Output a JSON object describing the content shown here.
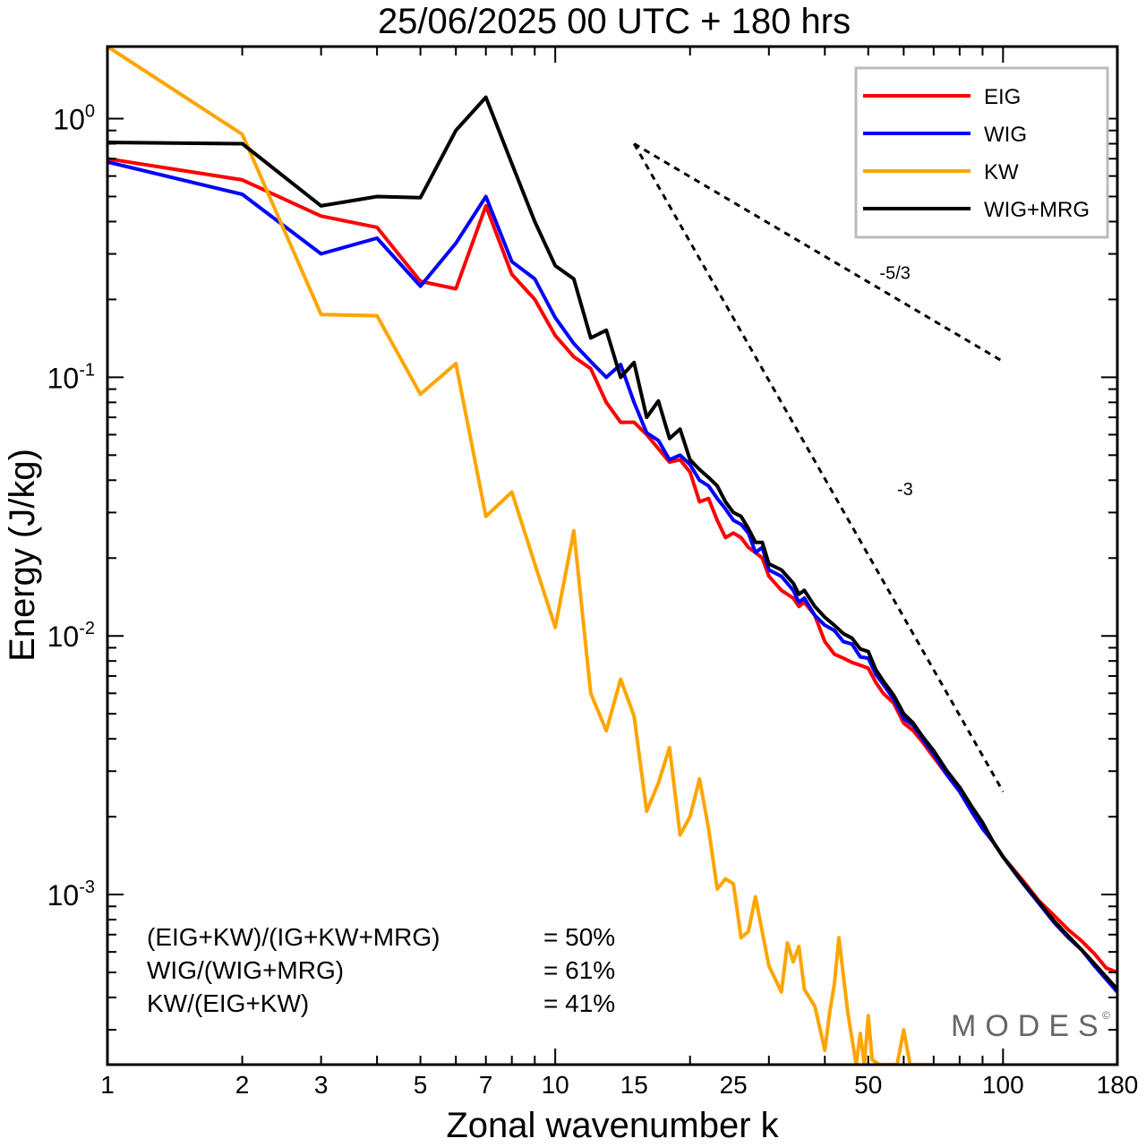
{
  "chart_data": {
    "type": "line",
    "title": "25/06/2025  00 UTC  + 180 hrs",
    "xlabel": "Zonal wavenumber k",
    "ylabel": "Energy (J/kg)",
    "x_scale": "log",
    "y_scale": "log",
    "xlim": [
      1,
      180
    ],
    "ylim": [
      0.00022,
      1.9
    ],
    "x_ticks": [
      1,
      2,
      3,
      5,
      7,
      10,
      15,
      25,
      50,
      100,
      180
    ],
    "y_ticks": [
      {
        "value": 1,
        "base": "10",
        "exp": "0"
      },
      {
        "value": 0.1,
        "base": "10",
        "exp": "-1"
      },
      {
        "value": 0.01,
        "base": "10",
        "exp": "-2"
      },
      {
        "value": 0.001,
        "base": "10",
        "exp": "-3"
      }
    ],
    "grid": false,
    "legend_position": "top-right",
    "series": [
      {
        "name": "EIG",
        "color": "#ff0000",
        "points": [
          [
            1,
            0.7
          ],
          [
            2,
            0.58
          ],
          [
            3,
            0.42
          ],
          [
            4,
            0.38
          ],
          [
            5,
            0.235
          ],
          [
            6,
            0.22
          ],
          [
            7,
            0.46
          ],
          [
            8,
            0.25
          ],
          [
            9,
            0.2
          ],
          [
            10,
            0.145
          ],
          [
            11,
            0.12
          ],
          [
            12,
            0.108
          ],
          [
            13,
            0.08
          ],
          [
            14,
            0.067
          ],
          [
            15,
            0.067
          ],
          [
            16,
            0.06
          ],
          [
            18,
            0.047
          ],
          [
            19,
            0.048
          ],
          [
            20,
            0.043
          ],
          [
            21,
            0.033
          ],
          [
            22,
            0.034
          ],
          [
            23,
            0.028
          ],
          [
            24,
            0.024
          ],
          [
            25,
            0.025
          ],
          [
            26,
            0.024
          ],
          [
            27,
            0.022
          ],
          [
            28,
            0.021
          ],
          [
            29,
            0.02
          ],
          [
            30,
            0.017
          ],
          [
            32,
            0.015
          ],
          [
            34,
            0.014
          ],
          [
            35,
            0.013
          ],
          [
            36,
            0.0135
          ],
          [
            38,
            0.012
          ],
          [
            40,
            0.0095
          ],
          [
            42,
            0.0085
          ],
          [
            44,
            0.0082
          ],
          [
            46,
            0.0079
          ],
          [
            48,
            0.0077
          ],
          [
            50,
            0.0075
          ],
          [
            52,
            0.0066
          ],
          [
            54,
            0.006
          ],
          [
            57,
            0.0055
          ],
          [
            60,
            0.0046
          ],
          [
            63,
            0.0043
          ],
          [
            66,
            0.0039
          ],
          [
            70,
            0.0034
          ],
          [
            75,
            0.0029
          ],
          [
            80,
            0.0025
          ],
          [
            85,
            0.0021
          ],
          [
            90,
            0.0018
          ],
          [
            95,
            0.0016
          ],
          [
            100,
            0.0014
          ],
          [
            110,
            0.00115
          ],
          [
            120,
            0.00095
          ],
          [
            130,
            0.00083
          ],
          [
            140,
            0.00073
          ],
          [
            150,
            0.00066
          ],
          [
            160,
            0.00059
          ],
          [
            170,
            0.00052
          ],
          [
            180,
            0.0005
          ]
        ]
      },
      {
        "name": "WIG",
        "color": "#0000ff",
        "points": [
          [
            1,
            0.68
          ],
          [
            2,
            0.51
          ],
          [
            3,
            0.3
          ],
          [
            4,
            0.345
          ],
          [
            5,
            0.225
          ],
          [
            6,
            0.33
          ],
          [
            7,
            0.5
          ],
          [
            8,
            0.28
          ],
          [
            9,
            0.24
          ],
          [
            10,
            0.17
          ],
          [
            11,
            0.135
          ],
          [
            12,
            0.115
          ],
          [
            13,
            0.1
          ],
          [
            14,
            0.112
          ],
          [
            15,
            0.08
          ],
          [
            16,
            0.061
          ],
          [
            17,
            0.057
          ],
          [
            18,
            0.048
          ],
          [
            19,
            0.05
          ],
          [
            20,
            0.046
          ],
          [
            21,
            0.04
          ],
          [
            22,
            0.038
          ],
          [
            23,
            0.034
          ],
          [
            24,
            0.031
          ],
          [
            25,
            0.028
          ],
          [
            26,
            0.027
          ],
          [
            27,
            0.025
          ],
          [
            28,
            0.021
          ],
          [
            29,
            0.022
          ],
          [
            30,
            0.018
          ],
          [
            32,
            0.017
          ],
          [
            34,
            0.015
          ],
          [
            35,
            0.0135
          ],
          [
            36,
            0.014
          ],
          [
            38,
            0.012
          ],
          [
            40,
            0.011
          ],
          [
            42,
            0.0105
          ],
          [
            44,
            0.0095
          ],
          [
            46,
            0.0093
          ],
          [
            48,
            0.0083
          ],
          [
            50,
            0.0082
          ],
          [
            52,
            0.0071
          ],
          [
            54,
            0.0065
          ],
          [
            57,
            0.0057
          ],
          [
            60,
            0.0048
          ],
          [
            63,
            0.0045
          ],
          [
            66,
            0.004
          ],
          [
            70,
            0.0035
          ],
          [
            75,
            0.0029
          ],
          [
            80,
            0.0025
          ],
          [
            85,
            0.0021
          ],
          [
            90,
            0.0018
          ],
          [
            95,
            0.0016
          ],
          [
            100,
            0.0014
          ],
          [
            110,
            0.00112
          ],
          [
            120,
            0.00093
          ],
          [
            130,
            0.00078
          ],
          [
            140,
            0.00068
          ],
          [
            150,
            0.00061
          ],
          [
            160,
            0.00053
          ],
          [
            170,
            0.00047
          ],
          [
            180,
            0.00042
          ]
        ]
      },
      {
        "name": "KW",
        "color": "#ffa500",
        "points": [
          [
            1,
            1.9
          ],
          [
            2,
            0.87
          ],
          [
            3,
            0.175
          ],
          [
            4,
            0.173
          ],
          [
            5,
            0.086
          ],
          [
            6,
            0.113
          ],
          [
            7,
            0.029
          ],
          [
            8,
            0.036
          ],
          [
            9,
            0.019
          ],
          [
            10,
            0.0108
          ],
          [
            11,
            0.0255
          ],
          [
            12,
            0.006
          ],
          [
            13,
            0.0043
          ],
          [
            14,
            0.0068
          ],
          [
            15,
            0.0049
          ],
          [
            16,
            0.0021
          ],
          [
            17,
            0.0027
          ],
          [
            18,
            0.0037
          ],
          [
            19,
            0.0017
          ],
          [
            20,
            0.002
          ],
          [
            21,
            0.0028
          ],
          [
            22,
            0.0018
          ],
          [
            23,
            0.00105
          ],
          [
            24,
            0.00115
          ],
          [
            25,
            0.0011
          ],
          [
            26,
            0.00068
          ],
          [
            27,
            0.00072
          ],
          [
            28,
            0.00098
          ],
          [
            30,
            0.00053
          ],
          [
            32,
            0.00042
          ],
          [
            33,
            0.00065
          ],
          [
            34,
            0.00055
          ],
          [
            35,
            0.00063
          ],
          [
            36,
            0.00043
          ],
          [
            38,
            0.00037
          ],
          [
            40,
            0.00025
          ],
          [
            41,
            0.00035
          ],
          [
            42,
            0.00045
          ],
          [
            43,
            0.00068
          ],
          [
            45,
            0.00035
          ],
          [
            47,
            0.00022
          ],
          [
            48,
            0.00029
          ],
          [
            49,
            0.00022
          ],
          [
            50,
            0.00034
          ],
          [
            51,
            0.00023
          ],
          [
            53,
            0.00022
          ],
          [
            56,
            0.00022
          ],
          [
            58,
            0.00022
          ],
          [
            60,
            0.0003
          ],
          [
            62,
            0.00022
          ],
          [
            66,
            0.00022
          ],
          [
            70,
            0.00022
          ]
        ]
      },
      {
        "name": "WIG+MRG",
        "color": "#000000",
        "points": [
          [
            1,
            0.81
          ],
          [
            2,
            0.8
          ],
          [
            3,
            0.46
          ],
          [
            4,
            0.5
          ],
          [
            5,
            0.495
          ],
          [
            6,
            0.9
          ],
          [
            7,
            1.21
          ],
          [
            8,
            0.67
          ],
          [
            9,
            0.4
          ],
          [
            10,
            0.27
          ],
          [
            11,
            0.24
          ],
          [
            12,
            0.142
          ],
          [
            13,
            0.152
          ],
          [
            14,
            0.1
          ],
          [
            15,
            0.114
          ],
          [
            16,
            0.07
          ],
          [
            17,
            0.081
          ],
          [
            18,
            0.058
          ],
          [
            19,
            0.063
          ],
          [
            20,
            0.048
          ],
          [
            21,
            0.044
          ],
          [
            22,
            0.041
          ],
          [
            23,
            0.038
          ],
          [
            24,
            0.033
          ],
          [
            25,
            0.03
          ],
          [
            26,
            0.029
          ],
          [
            27,
            0.026
          ],
          [
            28,
            0.023
          ],
          [
            29,
            0.023
          ],
          [
            30,
            0.019
          ],
          [
            32,
            0.018
          ],
          [
            34,
            0.016
          ],
          [
            35,
            0.0145
          ],
          [
            36,
            0.015
          ],
          [
            38,
            0.013
          ],
          [
            40,
            0.0118
          ],
          [
            42,
            0.011
          ],
          [
            44,
            0.0102
          ],
          [
            46,
            0.0098
          ],
          [
            48,
            0.0089
          ],
          [
            50,
            0.0087
          ],
          [
            52,
            0.0074
          ],
          [
            54,
            0.0067
          ],
          [
            57,
            0.0059
          ],
          [
            60,
            0.005
          ],
          [
            63,
            0.0046
          ],
          [
            66,
            0.0041
          ],
          [
            70,
            0.0036
          ],
          [
            75,
            0.003
          ],
          [
            80,
            0.0026
          ],
          [
            85,
            0.0022
          ],
          [
            90,
            0.0019
          ],
          [
            95,
            0.0016
          ],
          [
            100,
            0.0014
          ],
          [
            110,
            0.00113
          ],
          [
            120,
            0.00094
          ],
          [
            130,
            0.00079
          ],
          [
            140,
            0.00069
          ],
          [
            150,
            0.00061
          ],
          [
            160,
            0.00054
          ],
          [
            170,
            0.00048
          ],
          [
            180,
            0.00043
          ]
        ]
      }
    ],
    "reference_lines": [
      {
        "label": "-5/3",
        "from": [
          15,
          0.8
        ],
        "to": [
          100,
          0.115
        ],
        "label_at": [
          53,
          0.24
        ]
      },
      {
        "label": "-3",
        "from": [
          15,
          0.8
        ],
        "to": [
          100,
          0.0025
        ],
        "label_at": [
          58,
          0.035
        ]
      }
    ],
    "annotations": [
      {
        "label": "(EIG+KW)/(IG+KW+MRG)",
        "value": "= 50%"
      },
      {
        "label": "WIG/(WIG+MRG)",
        "value": "= 61%"
      },
      {
        "label": "KW/(EIG+KW)",
        "value": "= 41%"
      }
    ],
    "watermark": {
      "text": "MODES",
      "mark": "©"
    }
  }
}
